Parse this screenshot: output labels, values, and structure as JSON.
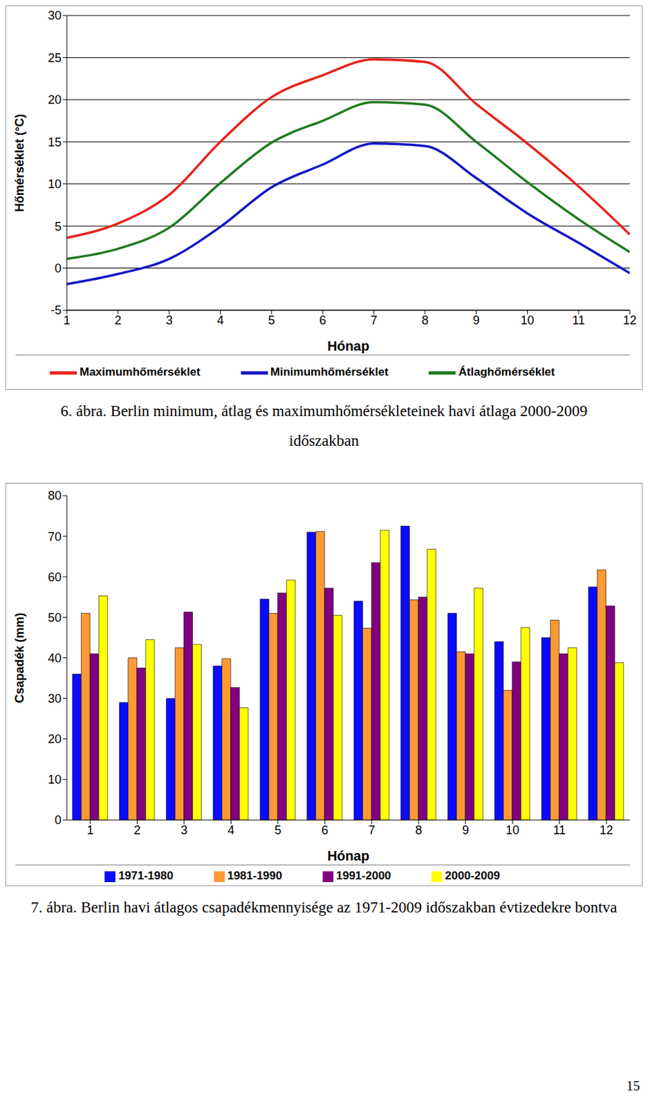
{
  "chart_data": [
    {
      "type": "line",
      "title": "6. ábra. Berlin minimum, átlag és maximumhőmérsékleteinek havi átlaga 2000-2009 időszakban",
      "x_label": "Hónap",
      "y_label": "Hőmérséklet (°C)",
      "x": [
        1,
        2,
        3,
        4,
        5,
        6,
        7,
        8,
        9,
        10,
        11,
        12
      ],
      "xlim": [
        1,
        12
      ],
      "xticks": [
        1,
        2,
        3,
        4,
        5,
        6,
        7,
        8,
        9,
        10,
        11,
        12
      ],
      "ylim": [
        -5,
        30
      ],
      "yticks": [
        -5,
        0,
        5,
        10,
        15,
        20,
        25,
        30
      ],
      "grid": true,
      "legend": "bottom",
      "series": [
        {
          "name": "Maximumhőmérséklet",
          "color": "#e8231c",
          "values": [
            3.6,
            5.3,
            8.7,
            15.0,
            20.3,
            22.9,
            24.8,
            24.5,
            19.5,
            14.8,
            9.7,
            4.0
          ]
        },
        {
          "name": "Átlaghőmérséklet",
          "color": "#1e7b1e",
          "values": [
            1.1,
            2.3,
            4.8,
            10.1,
            14.9,
            17.5,
            19.7,
            19.4,
            15.0,
            10.2,
            5.8,
            1.9
          ]
        },
        {
          "name": "Minimumhőmérséklet",
          "color": "#1414c8",
          "values": [
            -1.9,
            -0.7,
            1.1,
            4.9,
            9.6,
            12.3,
            14.8,
            14.5,
            10.7,
            6.5,
            3.0,
            -0.6
          ]
        }
      ]
    },
    {
      "type": "bar",
      "title": "7. ábra. Berlin havi átlagos csapadékmennyisége az 1971-2009 időszakban évtizedekre bontva",
      "x_label": "Hónap",
      "y_label": "Csapadék (mm)",
      "categories": [
        "1",
        "2",
        "3",
        "4",
        "5",
        "6",
        "7",
        "8",
        "9",
        "10",
        "11",
        "12"
      ],
      "ylim": [
        0,
        80
      ],
      "yticks": [
        0,
        10,
        20,
        30,
        40,
        50,
        60,
        70,
        80
      ],
      "grid": false,
      "legend": "bottom",
      "series": [
        {
          "name": "1971-1980",
          "color": "#0a0aff",
          "values": [
            36,
            29,
            30,
            38,
            54.5,
            71,
            54,
            72.5,
            51,
            44,
            45,
            57.5
          ]
        },
        {
          "name": "1981-1990",
          "color": "#ff9933",
          "values": [
            51,
            40,
            42.5,
            39.8,
            51,
            71.2,
            47.3,
            54.3,
            41.5,
            32,
            49.3,
            61.7
          ]
        },
        {
          "name": "1991-2000",
          "color": "#800080",
          "values": [
            41,
            37.5,
            51.3,
            32.7,
            56,
            57.2,
            63.5,
            55,
            41,
            39,
            41,
            52.8
          ]
        },
        {
          "name": "2000-2009",
          "color": "#ffff00",
          "values": [
            55.3,
            44.5,
            43.3,
            27.7,
            59.2,
            50.5,
            71.5,
            66.8,
            57.2,
            47.5,
            42.5,
            38.8
          ]
        }
      ]
    }
  ],
  "page_number": 15
}
